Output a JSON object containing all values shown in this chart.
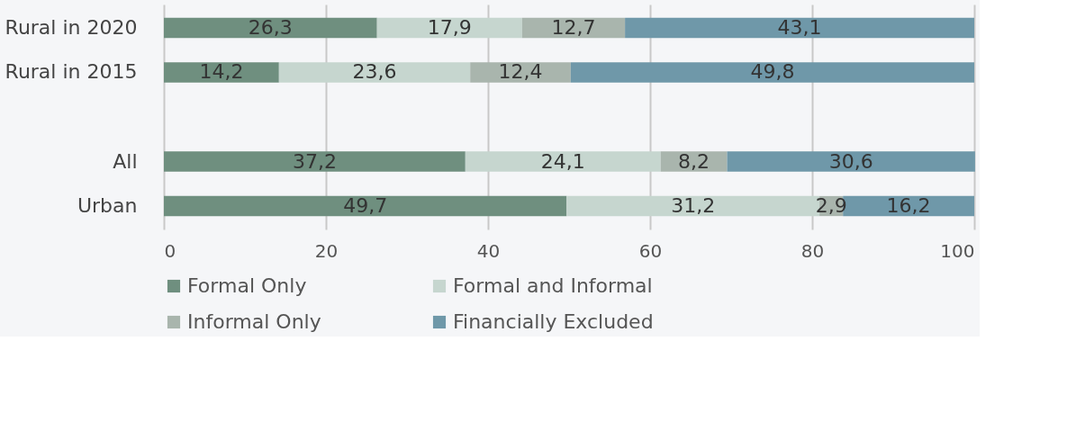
{
  "chart_data": {
    "type": "bar",
    "orientation": "horizontal",
    "stacked": true,
    "categories": [
      "Rural in 2020",
      "Rural in 2015",
      null,
      "All",
      "Urban"
    ],
    "series": [
      {
        "name": "Formal Only",
        "color": "#6f8f7f",
        "values": [
          26.3,
          14.2,
          null,
          37.2,
          49.7
        ],
        "value_labels": [
          "26,3",
          "14,2",
          null,
          "37,2",
          "49,7"
        ]
      },
      {
        "name": "Formal and Informal",
        "color": "#c6d6cf",
        "values": [
          17.9,
          23.6,
          null,
          24.1,
          31.2
        ],
        "value_labels": [
          "17,9",
          "23,6",
          null,
          "24,1",
          "31,2"
        ]
      },
      {
        "name": "Informal Only",
        "color": "#a9b5ad",
        "values": [
          12.7,
          12.4,
          null,
          8.2,
          2.9
        ],
        "value_labels": [
          "12,7",
          "12,4",
          null,
          "8,2",
          "2,9"
        ]
      },
      {
        "name": "Financially Excluded",
        "color": "#6f98a9",
        "values": [
          43.1,
          49.8,
          null,
          30.6,
          16.2
        ],
        "value_labels": [
          "43,1",
          "49,8",
          null,
          "30,6",
          "16,2"
        ]
      }
    ],
    "xlim": [
      0,
      100
    ],
    "xticks": [
      0,
      20,
      40,
      60,
      80,
      100
    ],
    "grid": "x",
    "legend": "bottom"
  }
}
